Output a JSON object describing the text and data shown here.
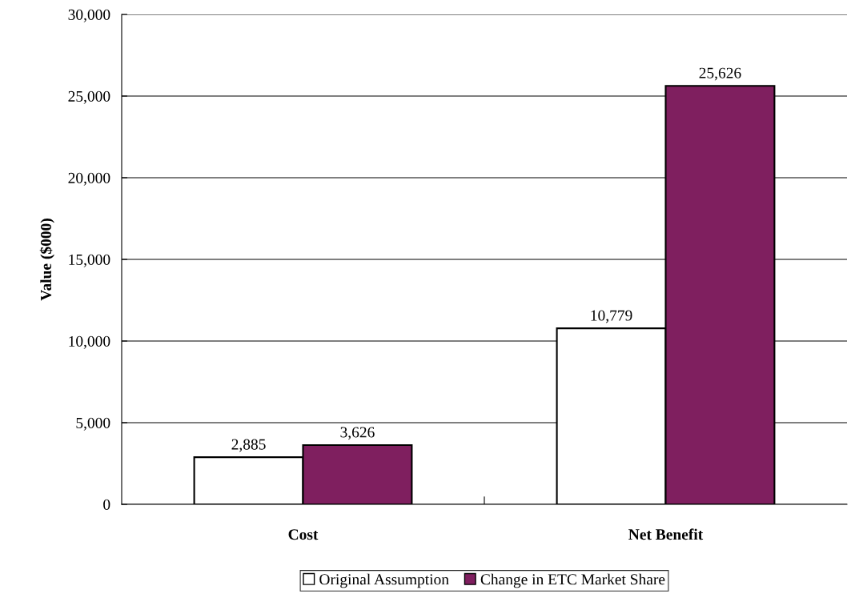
{
  "chart_data": {
    "type": "bar",
    "ylabel": "Value ($000)",
    "categories": [
      "Cost",
      "Net Benefit"
    ],
    "series": [
      {
        "name": "Original Assumption",
        "color": "#ffffff",
        "values": [
          2885,
          10779
        ],
        "value_labels": [
          "2,885",
          "10,779"
        ]
      },
      {
        "name": "Change in ETC Market Share",
        "color": "#7f1f5f",
        "values": [
          3626,
          25626
        ],
        "value_labels": [
          "3,626",
          "25,626"
        ]
      }
    ],
    "ylim": [
      0,
      30000
    ],
    "yticks": [
      0,
      {
        "value": 5000,
        "label": "5,000"
      },
      {
        "value": 10000,
        "label": "10,000"
      },
      {
        "value": 15000,
        "label": "15,000"
      },
      {
        "value": 20000,
        "label": "20,000"
      },
      {
        "value": 25000,
        "label": "25,000"
      },
      {
        "value": 30000,
        "label": "30,000"
      }
    ],
    "grid": "y",
    "legend": "bottom"
  }
}
